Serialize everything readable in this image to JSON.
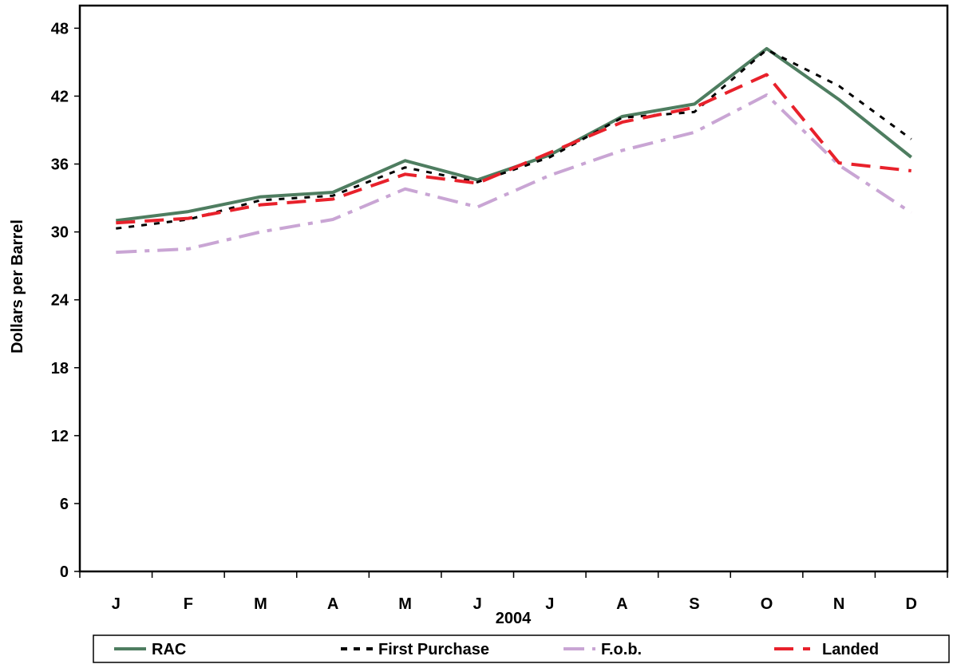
{
  "chart_data": {
    "type": "line",
    "title": "",
    "xlabel": "2004",
    "ylabel": "Dollars per Barrel",
    "categories": [
      "J",
      "F",
      "M",
      "A",
      "M",
      "J",
      "J",
      "A",
      "S",
      "O",
      "N",
      "D"
    ],
    "ylim": [
      0,
      50
    ],
    "yticks": [
      0,
      6,
      12,
      18,
      24,
      30,
      36,
      42,
      48
    ],
    "grid": false,
    "legend_position": "bottom",
    "series": [
      {
        "name": "RAC",
        "color": "#4e7d60",
        "dash": "solid",
        "values": [
          31.0,
          31.8,
          33.1,
          33.5,
          36.3,
          34.6,
          36.8,
          40.2,
          41.3,
          46.2,
          41.7,
          36.6
        ]
      },
      {
        "name": "First Purchase",
        "color": "#000000",
        "dash": "short-dash",
        "values": [
          30.3,
          31.1,
          32.8,
          33.2,
          35.7,
          34.4,
          36.6,
          40.1,
          40.6,
          46.1,
          42.9,
          38.2
        ]
      },
      {
        "name": "F.o.b.",
        "color": "#c9a5d4",
        "dash": "dash-dot",
        "values": [
          28.2,
          28.5,
          30.0,
          31.1,
          33.8,
          32.2,
          35.0,
          37.2,
          38.8,
          42.1,
          35.9,
          31.7
        ]
      },
      {
        "name": "Landed",
        "color": "#e8212b",
        "dash": "long-dash",
        "values": [
          30.8,
          31.2,
          32.4,
          32.9,
          35.1,
          34.3,
          37.0,
          39.7,
          41.0,
          43.9,
          36.1,
          35.4
        ]
      }
    ]
  }
}
